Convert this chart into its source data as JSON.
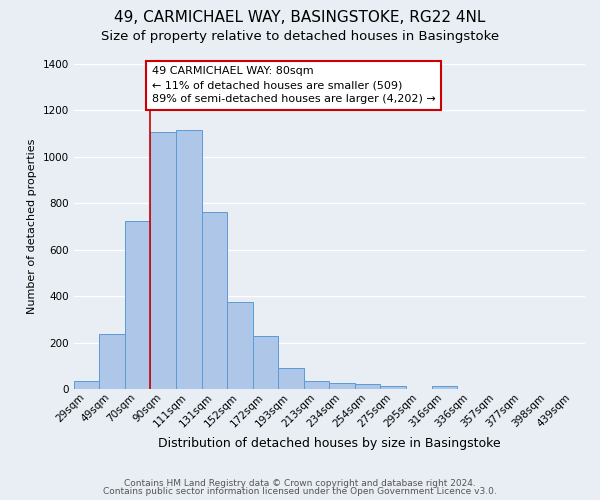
{
  "title1": "49, CARMICHAEL WAY, BASINGSTOKE, RG22 4NL",
  "title2": "Size of property relative to detached houses in Basingstoke",
  "xlabel": "Distribution of detached houses by size in Basingstoke",
  "ylabel": "Number of detached properties",
  "bin_labels": [
    "29sqm",
    "49sqm",
    "70sqm",
    "90sqm",
    "111sqm",
    "131sqm",
    "152sqm",
    "172sqm",
    "193sqm",
    "213sqm",
    "234sqm",
    "254sqm",
    "275sqm",
    "295sqm",
    "316sqm",
    "336sqm",
    "357sqm",
    "377sqm",
    "398sqm",
    "439sqm"
  ],
  "bar_heights": [
    35,
    237,
    724,
    1107,
    1117,
    762,
    375,
    228,
    90,
    35,
    25,
    20,
    12,
    0,
    12,
    0,
    0,
    0,
    0,
    0
  ],
  "bar_color": "#aec6e8",
  "bar_edge_color": "#5b9bd5",
  "vline_position": 2.5,
  "annotation_text_line1": "49 CARMICHAEL WAY: 80sqm",
  "annotation_text_line2": "← 11% of detached houses are smaller (509)",
  "annotation_text_line3": "89% of semi-detached houses are larger (4,202) →",
  "annotation_box_color": "#ffffff",
  "annotation_box_edge_color": "#cc0000",
  "vline_color": "#cc0000",
  "ylim": [
    0,
    1400
  ],
  "yticks": [
    0,
    200,
    400,
    600,
    800,
    1000,
    1200,
    1400
  ],
  "footer1": "Contains HM Land Registry data © Crown copyright and database right 2024.",
  "footer2": "Contains public sector information licensed under the Open Government Licence v3.0.",
  "background_color": "#e8eef4",
  "plot_background_color": "#e8eef4",
  "grid_color": "#ffffff",
  "title1_fontsize": 11,
  "title2_fontsize": 9.5,
  "xlabel_fontsize": 9,
  "ylabel_fontsize": 8,
  "tick_fontsize": 7.5,
  "annotation_fontsize": 8,
  "footer_fontsize": 6.5
}
